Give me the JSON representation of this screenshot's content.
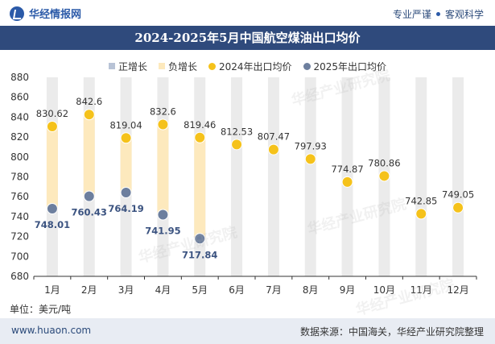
{
  "header": {
    "brand": "华经情报网",
    "slogan_left": "专业严谨",
    "slogan_right": "客观科学"
  },
  "title": "2024-2025年5月中国航空煤油出口均价",
  "legend": [
    {
      "label": "正增长",
      "color": "#b8c3d6",
      "shape": "rect"
    },
    {
      "label": "负增长",
      "color": "#fde9bd",
      "shape": "rect"
    },
    {
      "label": "2024年出口均价",
      "color": "#f5c21b",
      "shape": "dot"
    },
    {
      "label": "2025年出口均价",
      "color": "#6d7f9e",
      "shape": "dot"
    }
  ],
  "unit": "单位：美元/吨",
  "footer": {
    "website": "www.huaon.com",
    "source": "数据来源：中国海关，华经产业研究院整理"
  },
  "watermark": "华经产业研究院",
  "chart_data": {
    "type": "scatter",
    "categories": [
      "1月",
      "2月",
      "3月",
      "4月",
      "5月",
      "6月",
      "7月",
      "8月",
      "9月",
      "10月",
      "11月",
      "12月"
    ],
    "ylim": [
      680,
      880
    ],
    "yticks": [
      680,
      700,
      720,
      740,
      760,
      780,
      800,
      820,
      840,
      860,
      880
    ],
    "grid": false,
    "legend_position": "top",
    "series": [
      {
        "name": "2024年出口均价",
        "color": "#f5c21b",
        "values": [
          830.62,
          842.6,
          819.04,
          832.6,
          819.46,
          812.53,
          807.47,
          797.93,
          774.87,
          780.86,
          742.85,
          749.05
        ]
      },
      {
        "name": "2025年出口均价",
        "color": "#6d7f9e",
        "values": [
          748.01,
          760.43,
          764.19,
          741.95,
          717.84,
          null,
          null,
          null,
          null,
          null,
          null,
          null
        ]
      }
    ],
    "labels_2024": [
      "830.62",
      "842.6",
      "819.04",
      "832.6",
      "819.46",
      "812.53",
      "807.47",
      "797.93",
      "774.87",
      "780.86",
      "742.85",
      "749.05"
    ],
    "labels_2025": [
      "748.01",
      "760.43",
      "764.19",
      "741.95",
      "717.84"
    ],
    "colors": {
      "background_bar": "#ebebeb",
      "negative_band": "#fde9bd",
      "axis": "#333333"
    }
  }
}
